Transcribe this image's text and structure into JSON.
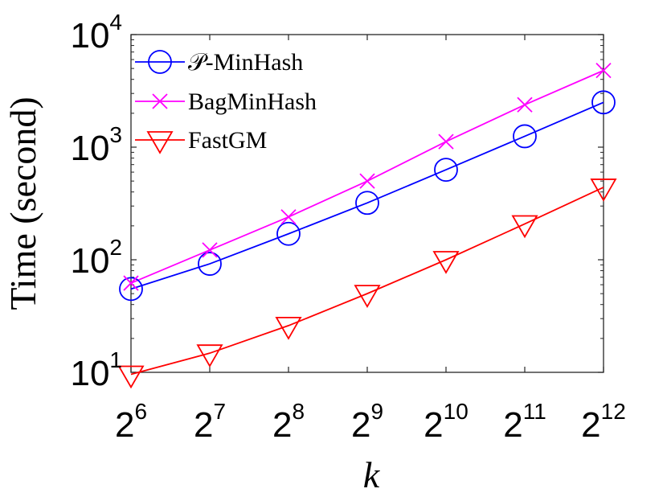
{
  "chart_data": {
    "type": "line",
    "xlabel": "k",
    "ylabel": "Time (second)",
    "x": [
      64,
      128,
      256,
      512,
      1024,
      2048,
      4096
    ],
    "x_scale": "log2",
    "y_scale": "log10",
    "xlim": [
      64,
      4096
    ],
    "ylim": [
      10,
      10000
    ],
    "grid": false,
    "legend_position": "top-left",
    "x_ticks": [
      {
        "base": "2",
        "exp": "6",
        "value": 64
      },
      {
        "base": "2",
        "exp": "7",
        "value": 128
      },
      {
        "base": "2",
        "exp": "8",
        "value": 256
      },
      {
        "base": "2",
        "exp": "9",
        "value": 512
      },
      {
        "base": "2",
        "exp": "10",
        "value": 1024
      },
      {
        "base": "2",
        "exp": "11",
        "value": 2048
      },
      {
        "base": "2",
        "exp": "12",
        "value": 4096
      }
    ],
    "y_ticks": [
      {
        "base": "10",
        "exp": "1",
        "value": 10
      },
      {
        "base": "10",
        "exp": "2",
        "value": 100
      },
      {
        "base": "10",
        "exp": "3",
        "value": 1000
      },
      {
        "base": "10",
        "exp": "4",
        "value": 10000
      }
    ],
    "series": [
      {
        "name": "𝒫-MinHash",
        "color": "#0000ff",
        "marker": "circle",
        "values": [
          55,
          92,
          170,
          320,
          630,
          1250,
          2500
        ]
      },
      {
        "name": "BagMinHash",
        "color": "#ff00ff",
        "marker": "x",
        "values": [
          62,
          122,
          240,
          500,
          1120,
          2380,
          4800
        ]
      },
      {
        "name": "FastGM",
        "color": "#ff0000",
        "marker": "triangle-down",
        "values": [
          9.6,
          14.8,
          26,
          50,
          100,
          208,
          440
        ]
      }
    ]
  }
}
